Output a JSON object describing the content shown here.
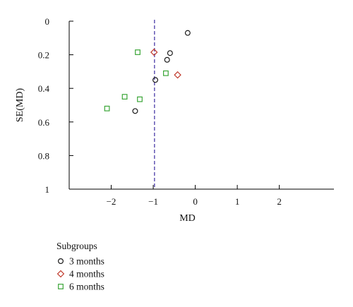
{
  "chart_data": {
    "type": "scatter",
    "title": "",
    "xlabel": "MD",
    "ylabel": "SE(MD)",
    "xlim": [
      -3.0,
      3.3
    ],
    "ylim": [
      0,
      1
    ],
    "y_inverted": true,
    "x_ticks": [
      -2,
      -1,
      0,
      1,
      2
    ],
    "x_tick_labels": [
      "−2",
      "−1",
      "0",
      "1",
      "2"
    ],
    "y_ticks": [
      0,
      0.2,
      0.4,
      0.6,
      0.8,
      1
    ],
    "y_tick_labels": [
      "0",
      "0.2",
      "0.4",
      "0.6",
      "0.8",
      "1"
    ],
    "reference_line": {
      "x": -0.97,
      "style": "dashed",
      "color": "#4a3aa8"
    },
    "grid": false,
    "legend": {
      "title": "Subgroups",
      "position": "bottom-left"
    },
    "series": [
      {
        "name": "3 months",
        "marker": "circle",
        "color": "#1a1a1a",
        "points": [
          {
            "x": -0.18,
            "y": 0.07
          },
          {
            "x": -0.6,
            "y": 0.19
          },
          {
            "x": -0.67,
            "y": 0.23
          },
          {
            "x": -0.95,
            "y": 0.35
          },
          {
            "x": -1.43,
            "y": 0.535
          }
        ]
      },
      {
        "name": "4 months",
        "marker": "diamond",
        "color": "#c0392b",
        "points": [
          {
            "x": -0.98,
            "y": 0.185
          },
          {
            "x": -0.42,
            "y": 0.32
          }
        ]
      },
      {
        "name": "6 months",
        "marker": "square",
        "color": "#3aa637",
        "points": [
          {
            "x": -1.37,
            "y": 0.185
          },
          {
            "x": -0.7,
            "y": 0.31
          },
          {
            "x": -1.68,
            "y": 0.45
          },
          {
            "x": -1.32,
            "y": 0.465
          },
          {
            "x": -2.1,
            "y": 0.52
          }
        ]
      }
    ]
  }
}
